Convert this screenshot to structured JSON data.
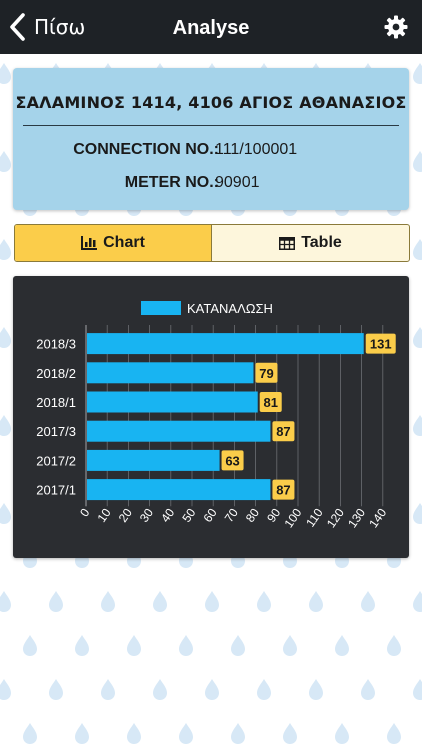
{
  "nav": {
    "back_label": "Πίσω",
    "title": "Analyse"
  },
  "info": {
    "address": "ΣΑΛΑΜΙΝΟΣ 1414, 4106 ΑΓΙΟΣ ΑΘΑΝΑΣΙΟΣ",
    "connection_label": "CONNECTION NO.:",
    "connection_value": "111/100001",
    "meter_label": "METER NO.:",
    "meter_value": "90901"
  },
  "toggle": {
    "chart_label": "Chart",
    "table_label": "Table",
    "selected": "Chart"
  },
  "colors": {
    "navbar": "#1e2226",
    "info_card": "#a5d3ea",
    "accent": "#fbcd4a",
    "bar": "#18b4f2",
    "chart_bg": "#2b2d31"
  },
  "icons": {
    "back": "chevron-left-icon",
    "settings": "gear-icon",
    "chart": "bar-chart-icon",
    "table": "table-icon"
  },
  "chart_data": {
    "type": "bar",
    "orientation": "horizontal",
    "categories": [
      "2018/3",
      "2018/2",
      "2018/1",
      "2017/3",
      "2017/2",
      "2017/1"
    ],
    "series": [
      {
        "name": "ΚΑΤΑΝΑΛΩΣΗ",
        "values": [
          131,
          79,
          81,
          87,
          63,
          87
        ]
      }
    ],
    "xlim": [
      0,
      140
    ],
    "xticks": [
      0,
      10,
      20,
      30,
      40,
      50,
      60,
      70,
      80,
      90,
      100,
      110,
      120,
      130,
      140
    ],
    "grid": true,
    "legend": "top",
    "data_labels": true
  }
}
